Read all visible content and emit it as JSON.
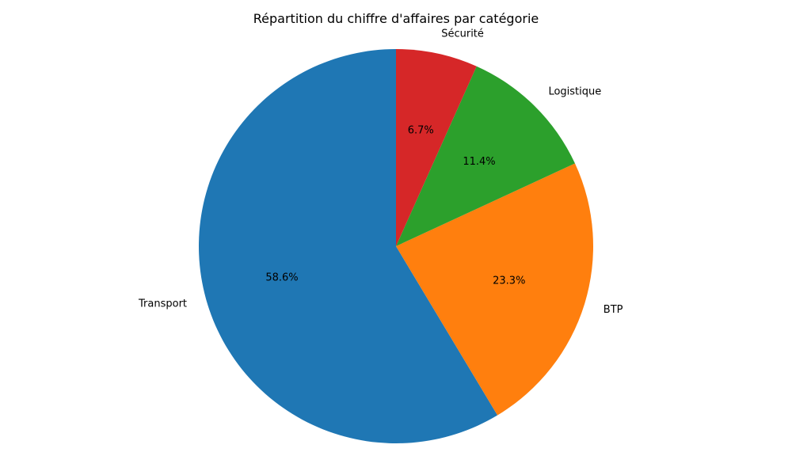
{
  "chart_data": {
    "type": "pie",
    "title": "Répartition du chiffre d'affaires par catégorie",
    "categories": [
      "Transport",
      "BTP",
      "Logistique",
      "Sécurité"
    ],
    "values": [
      58.6,
      23.3,
      11.4,
      6.7
    ],
    "percent_labels": [
      "58.6%",
      "23.3%",
      "11.4%",
      "6.7%"
    ],
    "colors": [
      "#1f77b4",
      "#ff7f0e",
      "#2ca02c",
      "#d62728"
    ],
    "start_angle_deg": 90,
    "direction": "counterclockwise",
    "legend": "none"
  }
}
